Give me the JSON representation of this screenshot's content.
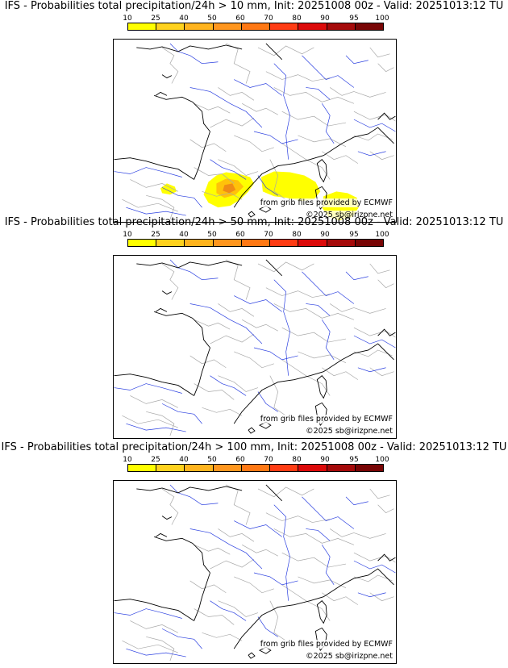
{
  "colors": {
    "coast": "#000000",
    "borders": "#a0a0a0",
    "rivers": "#1f3fd6",
    "prob_light": "#ffff00",
    "prob_mid": "#ffc20a",
    "prob_high": "#f08c14"
  },
  "scale": {
    "labels": [
      "10",
      "25",
      "40",
      "50",
      "60",
      "70",
      "80",
      "90",
      "95",
      "100"
    ],
    "colors": [
      "#ffff00",
      "#ffd21e",
      "#ffb41e",
      "#ff961e",
      "#ff7814",
      "#ff3c14",
      "#dc0a0a",
      "#a50a0a",
      "#780505"
    ]
  },
  "credits": {
    "source": "from grib files provided by ECMWF",
    "copyright": "©2025 sb@irizpne.net"
  },
  "panels": [
    {
      "title": "IFS - Probabilities total precipitation/24h > 10 mm, Init: 20251008 00z - Valid: 20251013:12 TU",
      "threshold_mm": 10,
      "regions": [
        {
          "name": "north-spain-yellow",
          "category": "10-25"
        },
        {
          "name": "catalonia-pyrenees",
          "category": "10-50"
        },
        {
          "name": "balearic-sea",
          "category": "10-25"
        },
        {
          "name": "sardinia-south",
          "category": "10-25"
        }
      ]
    },
    {
      "title": "IFS - Probabilities total precipitation/24h > 50 mm, Init: 20251008 00z - Valid: 20251013:12 TU",
      "threshold_mm": 50,
      "regions": []
    },
    {
      "title": "IFS - Probabilities total precipitation/24h > 100 mm, Init: 20251008 00z - Valid: 20251013:12 TU",
      "threshold_mm": 100,
      "regions": []
    }
  ]
}
